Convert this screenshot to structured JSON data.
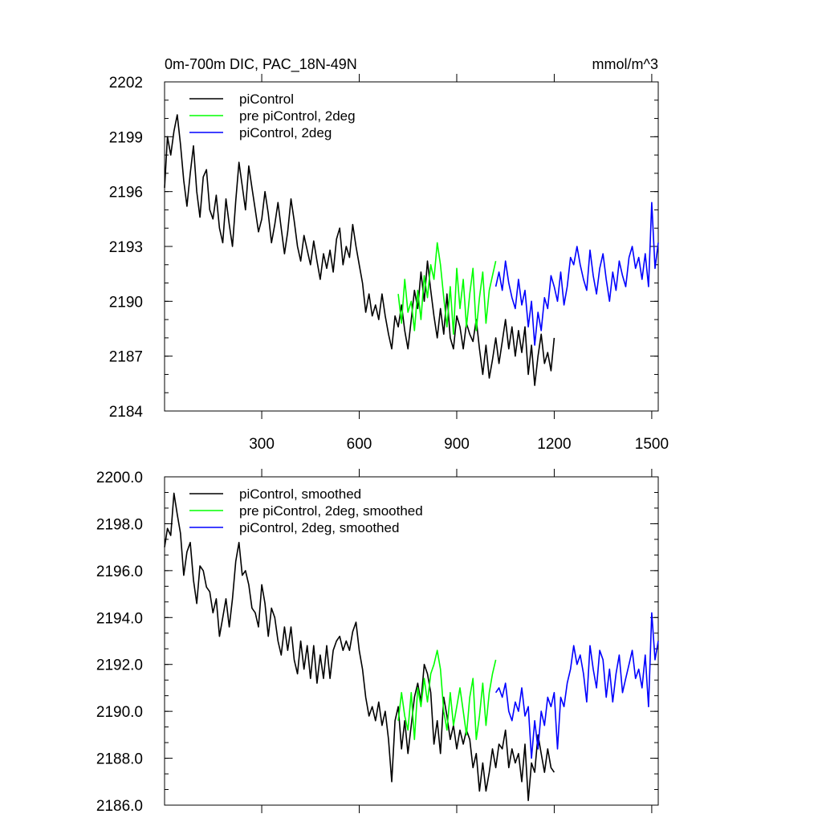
{
  "chart_data": [
    {
      "type": "line",
      "title": "0m-700m DIC, PAC_18N-49N",
      "units": "mmol/m^3",
      "xlim": [
        1,
        1520
      ],
      "ylim": [
        2184,
        2202
      ],
      "x_ticks": [
        300,
        600,
        900,
        1200,
        1500
      ],
      "y_ticks": [
        2184,
        2187,
        2190,
        2193,
        2196,
        2199,
        2202
      ],
      "legend_position": "top-left",
      "series": [
        {
          "name": "piControl",
          "color": "#000000",
          "x": [
            1,
            10,
            20,
            30,
            40,
            50,
            60,
            70,
            80,
            90,
            100,
            110,
            120,
            130,
            140,
            150,
            160,
            170,
            180,
            190,
            200,
            210,
            220,
            230,
            240,
            250,
            260,
            270,
            280,
            290,
            300,
            310,
            320,
            330,
            340,
            350,
            360,
            370,
            380,
            390,
            400,
            410,
            420,
            430,
            440,
            450,
            460,
            470,
            480,
            490,
            500,
            510,
            520,
            530,
            540,
            550,
            560,
            570,
            580,
            590,
            600,
            610,
            620,
            630,
            640,
            650,
            660,
            670,
            680,
            690,
            700,
            710,
            720,
            730,
            740,
            750,
            760,
            770,
            780,
            790,
            800,
            810,
            820,
            830,
            840,
            850,
            860,
            870,
            880,
            890,
            900,
            910,
            920,
            930,
            940,
            950,
            960,
            970,
            980,
            990,
            1000,
            1010,
            1020,
            1030,
            1040,
            1050,
            1060,
            1070,
            1080,
            1090,
            1100,
            1110,
            1120,
            1130,
            1140,
            1150,
            1160,
            1170,
            1180,
            1190,
            1200
          ],
          "y": [
            2196.2,
            2199.0,
            2198.0,
            2199.3,
            2200.2,
            2198.6,
            2196.6,
            2195.2,
            2197.0,
            2198.5,
            2196.0,
            2194.6,
            2196.8,
            2197.2,
            2195.0,
            2194.5,
            2195.8,
            2194.0,
            2193.2,
            2195.6,
            2194.2,
            2193.0,
            2195.5,
            2197.6,
            2196.3,
            2195.0,
            2197.4,
            2196.2,
            2195.0,
            2193.8,
            2194.5,
            2196.0,
            2194.8,
            2193.2,
            2194.2,
            2195.4,
            2194.0,
            2192.6,
            2193.8,
            2195.6,
            2194.4,
            2193.0,
            2192.2,
            2193.6,
            2192.8,
            2192.0,
            2193.3,
            2192.2,
            2191.2,
            2192.6,
            2191.8,
            2192.8,
            2191.6,
            2193.4,
            2194.0,
            2192.0,
            2193.0,
            2192.4,
            2194.2,
            2193.0,
            2192.0,
            2191.0,
            2189.4,
            2190.4,
            2189.2,
            2189.8,
            2189.0,
            2190.4,
            2189.2,
            2188.2,
            2187.4,
            2189.2,
            2188.6,
            2189.8,
            2188.4,
            2187.4,
            2189.0,
            2190.6,
            2189.6,
            2191.6,
            2190.0,
            2192.2,
            2190.6,
            2189.2,
            2188.0,
            2189.6,
            2188.2,
            2190.4,
            2188.0,
            2187.4,
            2189.2,
            2188.6,
            2187.4,
            2188.8,
            2188.2,
            2187.8,
            2189.0,
            2187.4,
            2186.0,
            2187.6,
            2185.8,
            2186.8,
            2188.0,
            2186.6,
            2187.8,
            2189.0,
            2187.4,
            2188.6,
            2187.0,
            2188.4,
            2187.2,
            2188.6,
            2186.0,
            2187.6,
            2185.4,
            2187.0,
            2188.2,
            2186.6,
            2187.2,
            2186.2,
            2188.0
          ]
        },
        {
          "name": "pre piControl, 2deg",
          "color": "#00ff00",
          "x": [
            720,
            730,
            740,
            750,
            760,
            770,
            780,
            790,
            800,
            810,
            820,
            830,
            840,
            850,
            860,
            870,
            880,
            890,
            900,
            910,
            920,
            930,
            940,
            950,
            960,
            970,
            980,
            990,
            1000,
            1010,
            1020
          ],
          "y": [
            2190.4,
            2188.8,
            2191.2,
            2189.4,
            2190.0,
            2188.4,
            2190.6,
            2189.0,
            2191.4,
            2190.2,
            2192.0,
            2191.2,
            2193.2,
            2192.0,
            2190.2,
            2188.6,
            2190.8,
            2188.2,
            2191.8,
            2189.6,
            2191.2,
            2188.6,
            2190.4,
            2191.8,
            2188.4,
            2190.2,
            2191.6,
            2188.8,
            2190.6,
            2191.4,
            2192.2
          ]
        },
        {
          "name": "piControl, 2deg",
          "color": "#0000ff",
          "x": [
            1020,
            1030,
            1040,
            1050,
            1060,
            1070,
            1080,
            1090,
            1100,
            1110,
            1120,
            1130,
            1140,
            1150,
            1160,
            1170,
            1180,
            1190,
            1200,
            1210,
            1220,
            1230,
            1240,
            1250,
            1260,
            1270,
            1280,
            1290,
            1300,
            1310,
            1320,
            1330,
            1340,
            1350,
            1360,
            1370,
            1380,
            1390,
            1400,
            1410,
            1420,
            1430,
            1440,
            1450,
            1460,
            1470,
            1480,
            1490,
            1500,
            1510,
            1520
          ],
          "y": [
            2190.8,
            2191.6,
            2190.6,
            2192.2,
            2191.0,
            2190.2,
            2189.6,
            2191.2,
            2189.8,
            2190.6,
            2188.6,
            2190.0,
            2187.6,
            2189.4,
            2188.4,
            2190.2,
            2189.6,
            2191.4,
            2190.8,
            2190.0,
            2191.6,
            2189.8,
            2190.8,
            2192.4,
            2192.0,
            2193.0,
            2192.0,
            2191.2,
            2190.6,
            2192.8,
            2191.4,
            2190.4,
            2191.8,
            2192.6,
            2191.2,
            2190.0,
            2191.6,
            2190.6,
            2192.2,
            2191.4,
            2190.8,
            2192.4,
            2193.0,
            2191.8,
            2192.4,
            2191.2,
            2192.6,
            2190.8,
            2195.4,
            2191.8,
            2193.2
          ]
        }
      ]
    },
    {
      "type": "line",
      "title": "",
      "units": "",
      "xlim": [
        1,
        1520
      ],
      "ylim": [
        2186,
        2200
      ],
      "x_ticks": [
        300,
        600,
        900,
        1200,
        1500
      ],
      "y_ticks": [
        2186.0,
        2188.0,
        2190.0,
        2192.0,
        2194.0,
        2196.0,
        2198.0,
        2200.0
      ],
      "y_tick_decimals": 1,
      "legend_position": "top-left",
      "series": [
        {
          "name": "piControl, smoothed",
          "color": "#000000",
          "x": [
            1,
            10,
            20,
            30,
            40,
            50,
            60,
            70,
            80,
            90,
            100,
            110,
            120,
            130,
            140,
            150,
            160,
            170,
            180,
            190,
            200,
            210,
            220,
            230,
            240,
            250,
            260,
            270,
            280,
            290,
            300,
            310,
            320,
            330,
            340,
            350,
            360,
            370,
            380,
            390,
            400,
            410,
            420,
            430,
            440,
            450,
            460,
            470,
            480,
            490,
            500,
            510,
            520,
            530,
            540,
            550,
            560,
            570,
            580,
            590,
            600,
            610,
            620,
            630,
            640,
            650,
            660,
            670,
            680,
            690,
            700,
            710,
            720,
            730,
            740,
            750,
            760,
            770,
            780,
            790,
            800,
            810,
            820,
            830,
            840,
            850,
            860,
            870,
            880,
            890,
            900,
            910,
            920,
            930,
            940,
            950,
            960,
            970,
            980,
            990,
            1000,
            1010,
            1020,
            1030,
            1040,
            1050,
            1060,
            1070,
            1080,
            1090,
            1100,
            1110,
            1120,
            1130,
            1140,
            1150,
            1160,
            1170,
            1180,
            1190,
            1200
          ],
          "y": [
            2197.0,
            2197.8,
            2197.5,
            2199.3,
            2198.4,
            2197.6,
            2195.8,
            2196.8,
            2197.2,
            2195.6,
            2194.6,
            2196.2,
            2196.0,
            2195.3,
            2195.1,
            2194.2,
            2194.8,
            2193.2,
            2194.0,
            2194.8,
            2193.6,
            2194.8,
            2196.4,
            2197.2,
            2195.8,
            2196.0,
            2195.4,
            2194.4,
            2194.2,
            2193.6,
            2195.4,
            2194.6,
            2193.2,
            2194.4,
            2194.0,
            2193.0,
            2192.4,
            2193.6,
            2192.6,
            2193.6,
            2192.2,
            2191.6,
            2193.0,
            2191.8,
            2192.8,
            2191.4,
            2192.8,
            2191.2,
            2192.4,
            2191.4,
            2192.8,
            2191.4,
            2192.6,
            2193.0,
            2193.2,
            2192.6,
            2193.0,
            2192.6,
            2193.4,
            2193.8,
            2192.6,
            2191.8,
            2190.6,
            2189.8,
            2190.2,
            2189.6,
            2190.4,
            2189.4,
            2190.0,
            2188.8,
            2187.0,
            2189.6,
            2190.2,
            2188.4,
            2189.6,
            2188.2,
            2189.4,
            2190.6,
            2191.2,
            2190.4,
            2192.0,
            2191.6,
            2190.8,
            2188.6,
            2189.6,
            2188.2,
            2190.6,
            2189.8,
            2188.8,
            2189.4,
            2188.4,
            2189.2,
            2188.6,
            2189.2,
            2188.8,
            2187.6,
            2188.2,
            2186.6,
            2187.8,
            2186.6,
            2187.4,
            2188.4,
            2187.6,
            2188.6,
            2188.4,
            2189.2,
            2187.6,
            2188.4,
            2187.8,
            2188.2,
            2187.0,
            2188.6,
            2186.2,
            2187.8,
            2187.4,
            2189.0,
            2188.2,
            2187.4,
            2188.4,
            2187.6,
            2187.4
          ]
        },
        {
          "name": "pre piControl, 2deg, smoothed",
          "color": "#00ff00",
          "x": [
            720,
            730,
            740,
            750,
            760,
            770,
            780,
            790,
            800,
            810,
            820,
            830,
            840,
            850,
            860,
            870,
            880,
            890,
            900,
            910,
            920,
            930,
            940,
            950,
            960,
            970,
            980,
            990,
            1000,
            1010,
            1020
          ],
          "y": [
            2189.6,
            2190.8,
            2189.8,
            2189.2,
            2190.8,
            2188.8,
            2191.0,
            2190.2,
            2191.4,
            2190.4,
            2191.6,
            2192.0,
            2192.6,
            2191.8,
            2190.0,
            2189.2,
            2190.8,
            2189.4,
            2190.2,
            2191.0,
            2190.0,
            2189.0,
            2190.6,
            2191.4,
            2188.8,
            2189.8,
            2191.2,
            2189.4,
            2190.8,
            2191.6,
            2192.2
          ]
        },
        {
          "name": "piControl, 2deg, smoothed",
          "color": "#0000ff",
          "x": [
            1020,
            1030,
            1040,
            1050,
            1060,
            1070,
            1080,
            1090,
            1100,
            1110,
            1120,
            1130,
            1140,
            1150,
            1160,
            1170,
            1180,
            1190,
            1200,
            1210,
            1220,
            1230,
            1240,
            1250,
            1260,
            1270,
            1280,
            1290,
            1300,
            1310,
            1320,
            1330,
            1340,
            1350,
            1360,
            1370,
            1380,
            1390,
            1400,
            1410,
            1420,
            1430,
            1440,
            1450,
            1460,
            1470,
            1480,
            1490,
            1500,
            1510,
            1520
          ],
          "y": [
            2190.8,
            2191.0,
            2190.6,
            2191.2,
            2190.0,
            2189.6,
            2190.4,
            2190.0,
            2191.0,
            2189.8,
            2190.2,
            2188.0,
            2189.6,
            2188.4,
            2190.0,
            2189.4,
            2190.6,
            2190.2,
            2190.8,
            2188.4,
            2190.6,
            2190.2,
            2191.2,
            2191.8,
            2192.8,
            2192.0,
            2192.4,
            2191.6,
            2190.4,
            2192.8,
            2191.8,
            2191.0,
            2192.6,
            2192.2,
            2190.6,
            2191.8,
            2190.4,
            2191.6,
            2192.4,
            2190.8,
            2191.4,
            2192.0,
            2192.6,
            2191.4,
            2191.8,
            2191.0,
            2192.4,
            2190.2,
            2194.2,
            2192.2,
            2193.0
          ]
        }
      ]
    }
  ]
}
